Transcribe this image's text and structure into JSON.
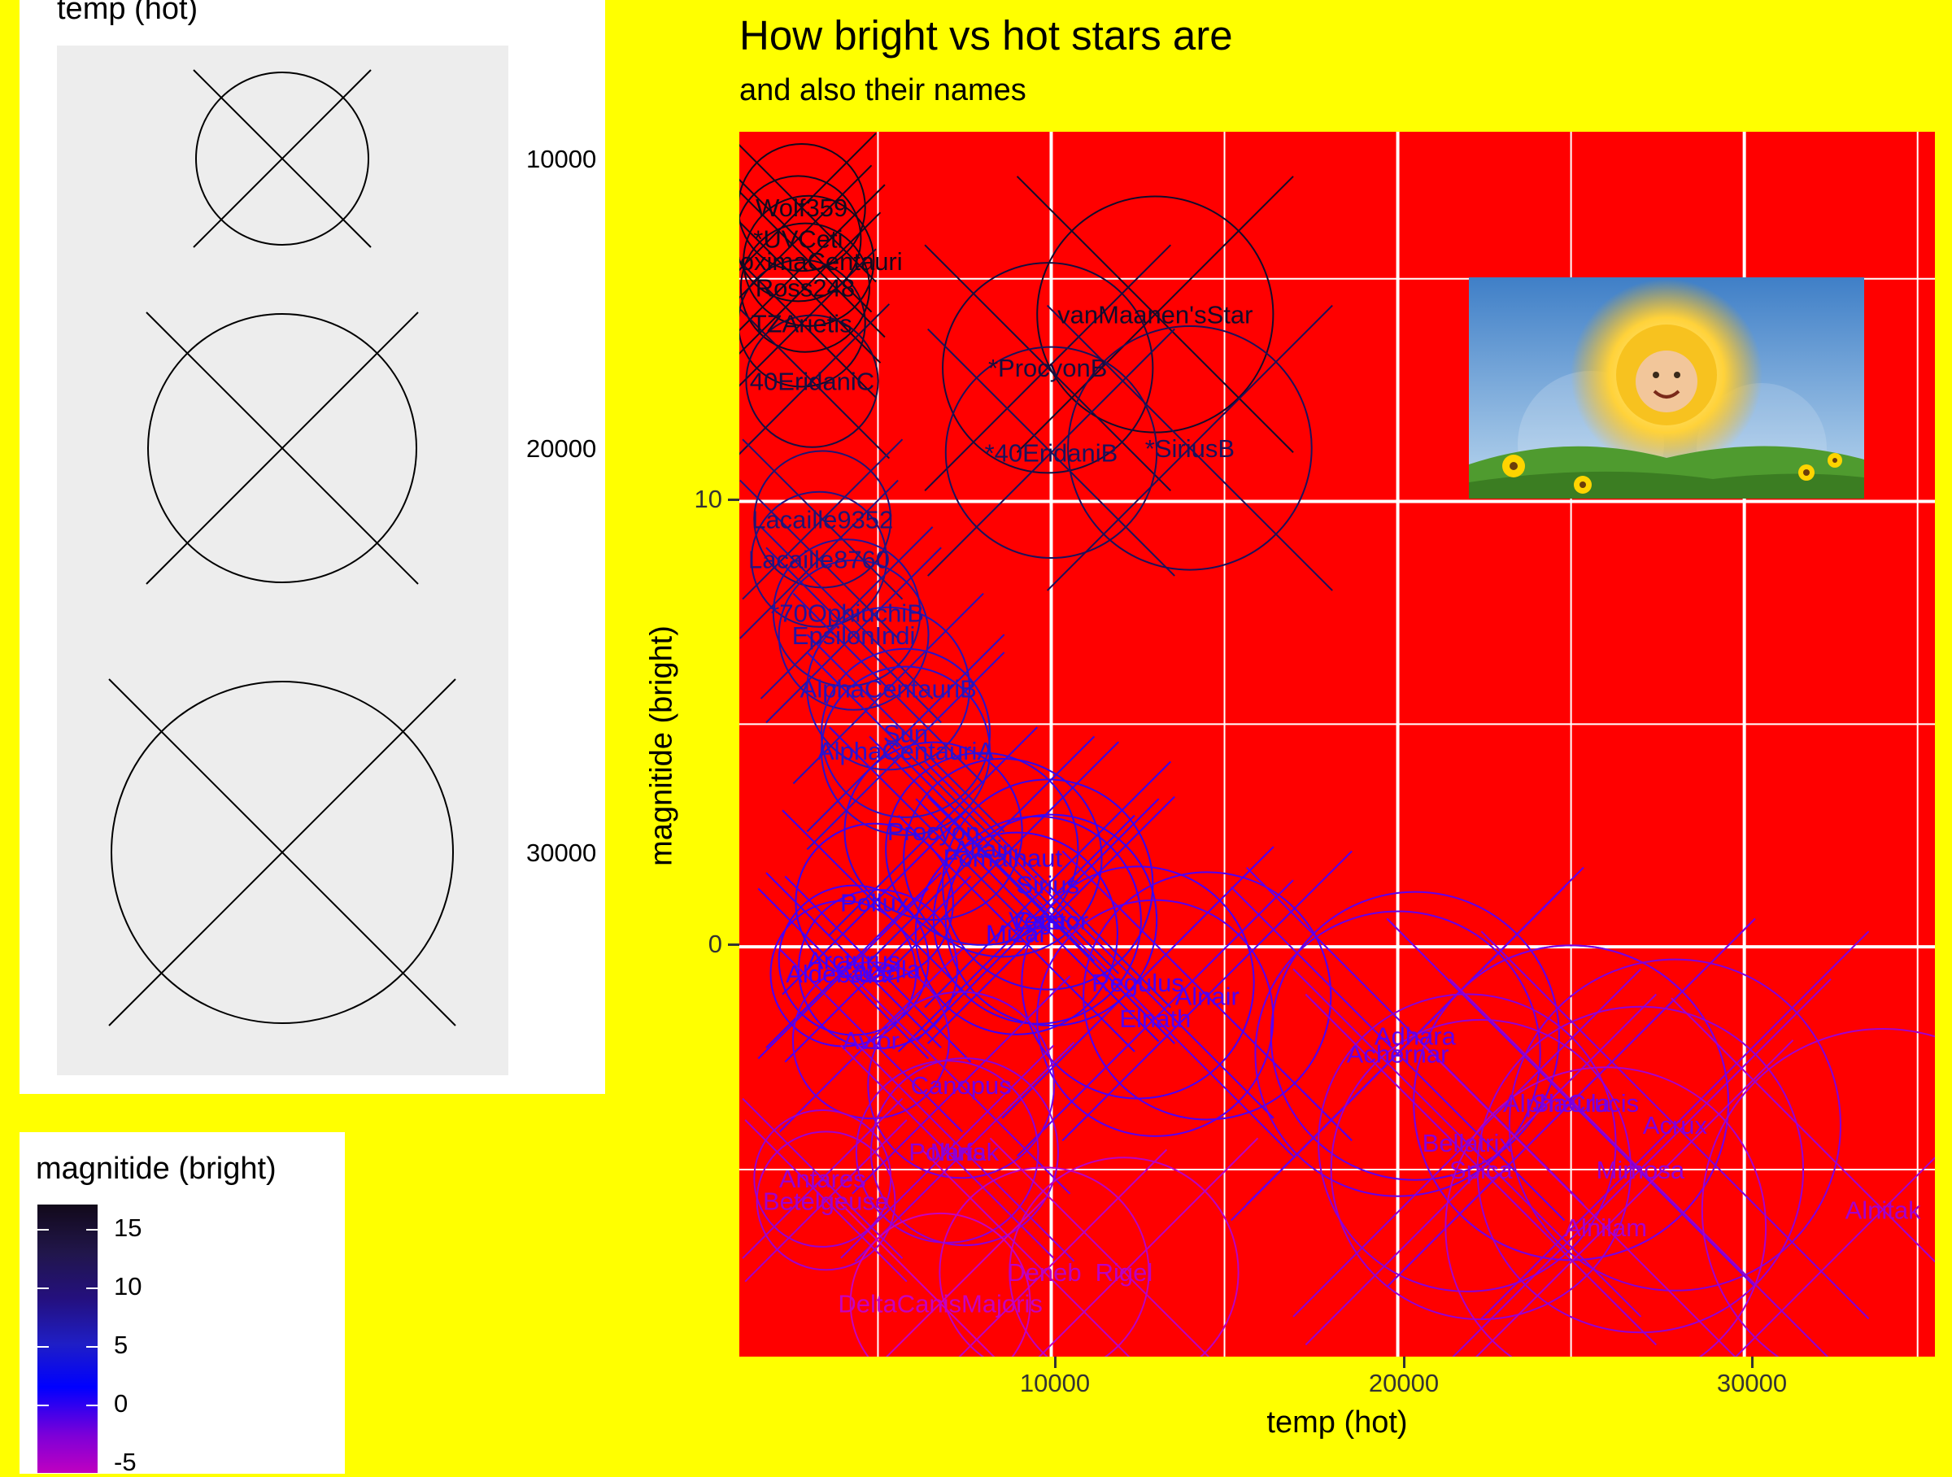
{
  "title": "How bright vs hot stars are",
  "subtitle": "and also their names",
  "colors": {
    "background": "#ffff00",
    "panel": "#ff0000",
    "grid": "#ffffff"
  },
  "legends": {
    "size": {
      "title": "temp (hot)",
      "labels": [
        "10000",
        "20000",
        "30000"
      ],
      "icon": "circle-with-x"
    },
    "color": {
      "title": "magnitide (bright)",
      "labels": [
        "15",
        "10",
        "5",
        "0",
        "-5"
      ]
    }
  },
  "image": {
    "description_icon": "sun-baby-image"
  },
  "chart_data": {
    "type": "scatter",
    "title": "How bright vs hot stars are",
    "subtitle": "and also their names",
    "xlabel": "temp (hot)",
    "ylabel": "magnitide (bright)",
    "xlim": [
      1000,
      35500
    ],
    "ylim": [
      -9.2,
      18.3
    ],
    "x_ticks": [
      "10000",
      "20000",
      "30000"
    ],
    "y_ticks": [
      "10",
      "0"
    ],
    "grid": true,
    "point_shape": "circle-with-x",
    "size_by": "temp",
    "color_by": "magnitude",
    "points": [
      {
        "name": "vanMaanen'sStar",
        "x": 13000,
        "y": 14.2
      },
      {
        "name": "*ProcyonB",
        "x": 9900,
        "y": 13.0
      },
      {
        "name": "*40EridaniB",
        "x": 10000,
        "y": 11.1
      },
      {
        "name": "*SiriusB",
        "x": 14000,
        "y": 11.2
      },
      {
        "name": "Wolf359",
        "x": 2800,
        "y": 16.6
      },
      {
        "name": "*UVCeti",
        "x": 2700,
        "y": 15.9
      },
      {
        "name": "ProximaCentauri",
        "x": 3000,
        "y": 15.4
      },
      {
        "name": "Ross248",
        "x": 2900,
        "y": 14.8
      },
      {
        "name": "TZArietis",
        "x": 2800,
        "y": 14.0
      },
      {
        "name": "40EridaniC",
        "x": 3100,
        "y": 12.7
      },
      {
        "name": "Lacaille9352",
        "x": 3400,
        "y": 9.6
      },
      {
        "name": "Lacaille8760",
        "x": 3300,
        "y": 8.7
      },
      {
        "name": "*70OphiuchiB",
        "x": 4100,
        "y": 7.5
      },
      {
        "name": "EpsilonIndi",
        "x": 4300,
        "y": 7.0
      },
      {
        "name": "AlphaCentauriB",
        "x": 5300,
        "y": 5.8
      },
      {
        "name": "Sun",
        "x": 5800,
        "y": 4.8
      },
      {
        "name": "AlphaCentauriA",
        "x": 5800,
        "y": 4.4
      },
      {
        "name": "Procyon",
        "x": 6600,
        "y": 2.6
      },
      {
        "name": "Altair",
        "x": 8000,
        "y": 2.2
      },
      {
        "name": "Sirius",
        "x": 9900,
        "y": 1.4
      },
      {
        "name": "Vega",
        "x": 9600,
        "y": 0.6
      },
      {
        "name": "Fomalhaut",
        "x": 8600,
        "y": 2.0
      },
      {
        "name": "Pollux",
        "x": 4900,
        "y": 1.0
      },
      {
        "name": "Arcturus",
        "x": 4300,
        "y": -0.3
      },
      {
        "name": "Capella",
        "x": 5000,
        "y": -0.5
      },
      {
        "name": "Aldebaran",
        "x": 4000,
        "y": -0.6
      },
      {
        "name": "Regulus",
        "x": 12500,
        "y": -0.8
      },
      {
        "name": "Castor",
        "x": 10000,
        "y": 0.6
      },
      {
        "name": "Mizar",
        "x": 9000,
        "y": 0.3
      },
      {
        "name": "Alnair",
        "x": 14500,
        "y": -1.1
      },
      {
        "name": "Adhara",
        "x": 20500,
        "y": -2.0
      },
      {
        "name": "Achernar",
        "x": 20000,
        "y": -2.4
      },
      {
        "name": "Elnath",
        "x": 13000,
        "y": -1.6
      },
      {
        "name": "Avior",
        "x": 4800,
        "y": -2.1
      },
      {
        "name": "Canopus",
        "x": 7400,
        "y": -3.1
      },
      {
        "name": "AlphaCrucis",
        "x": 25000,
        "y": -3.5
      },
      {
        "name": "Shaula",
        "x": 25000,
        "y": -3.5
      },
      {
        "name": "Acrux",
        "x": 28000,
        "y": -4.0
      },
      {
        "name": "Bellatrix",
        "x": 22000,
        "y": -4.4
      },
      {
        "name": "Polaris",
        "x": 7000,
        "y": -4.6
      },
      {
        "name": "Mirfak",
        "x": 7500,
        "y": -4.6
      },
      {
        "name": "Antares",
        "x": 3400,
        "y": -5.2
      },
      {
        "name": "Betelgeuse",
        "x": 3500,
        "y": -5.7
      },
      {
        "name": "Spica",
        "x": 22400,
        "y": -5.0
      },
      {
        "name": "Mimosa",
        "x": 27000,
        "y": -5.0
      },
      {
        "name": "Alnilam",
        "x": 26000,
        "y": -6.3
      },
      {
        "name": "Alnitak",
        "x": 34000,
        "y": -5.9
      },
      {
        "name": "Deneb",
        "x": 9800,
        "y": -7.3
      },
      {
        "name": "Rigel",
        "x": 12100,
        "y": -7.3
      },
      {
        "name": "DeltaCanisMajoris",
        "x": 6800,
        "y": -8.0
      }
    ]
  }
}
